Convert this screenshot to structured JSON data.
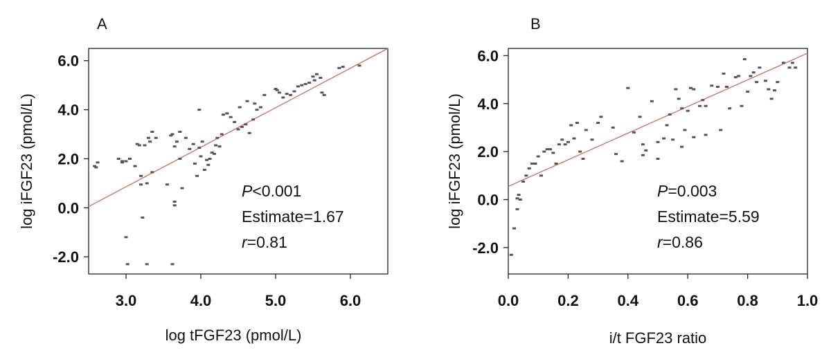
{
  "chart_data": [
    {
      "panel": "A",
      "type": "scatter",
      "xlabel": "log tFGF23 (pmol/L)",
      "ylabel": "log iFGF23 (pmol/L)",
      "xlim": [
        2.5,
        6.5
      ],
      "ylim": [
        -2.7,
        6.5
      ],
      "xticks": [
        "3.0",
        "4.0",
        "5.0",
        "6.0"
      ],
      "yticks": [
        "-2.0",
        "0.0",
        "2.0",
        "4.0",
        "6.0"
      ],
      "grid": false,
      "stats": [
        {
          "italic": "P",
          "rest": "<0.001"
        },
        {
          "italic": "",
          "rest": "Estimate=1.67"
        },
        {
          "italic": "r",
          "rest": "=0.81"
        }
      ],
      "fit_line": {
        "x": [
          2.5,
          6.5
        ],
        "y": [
          0.05,
          6.55
        ]
      },
      "x": [
        2.58,
        2.6,
        2.62,
        2.9,
        2.95,
        3.0,
        3.02,
        3.05,
        3.12,
        3.15,
        3.18,
        3.2,
        3.22,
        3.25,
        3.28,
        3.3,
        3.32,
        3.35,
        3.4,
        3.55,
        3.6,
        3.62,
        3.65,
        3.68,
        3.72,
        3.75,
        3.8,
        3.85,
        3.9,
        3.92,
        3.95,
        3.98,
        4.0,
        4.02,
        4.05,
        4.08,
        4.1,
        4.12,
        4.15,
        4.18,
        4.2,
        4.22,
        4.25,
        4.28,
        4.3,
        4.35,
        4.4,
        4.45,
        4.5,
        4.52,
        4.55,
        4.6,
        4.62,
        4.65,
        4.7,
        4.72,
        4.75,
        4.8,
        4.85,
        5.0,
        5.02,
        5.05,
        5.1,
        5.15,
        5.2,
        5.25,
        5.3,
        5.35,
        5.4,
        5.45,
        5.5,
        5.52,
        5.55,
        5.6,
        5.62,
        5.65,
        5.85,
        5.9,
        6.12,
        3.0,
        3.05,
        3.2,
        3.28,
        3.65,
        3.65,
        3.62,
        3.72,
        3.98,
        3.35,
        2.95
      ],
      "y": [
        1.7,
        1.65,
        1.85,
        2.0,
        1.85,
        -1.2,
        -2.3,
        2.0,
        1.7,
        2.6,
        2.55,
        0.95,
        -0.4,
        2.55,
        -2.3,
        2.85,
        2.7,
        1.45,
        2.85,
        0.95,
        2.95,
        3.0,
        2.5,
        2.7,
        3.1,
        0.8,
        2.85,
        2.4,
        2.6,
        1.8,
        1.3,
        2.45,
        2.1,
        2.7,
        1.55,
        1.95,
        1.75,
        2.0,
        2.25,
        2.2,
        2.55,
        2.85,
        2.5,
        3.0,
        3.8,
        3.85,
        3.7,
        3.5,
        3.2,
        4.1,
        3.3,
        3.4,
        4.35,
        3.05,
        3.6,
        4.25,
        4.0,
        4.1,
        4.6,
        4.85,
        4.8,
        4.7,
        4.5,
        4.65,
        4.6,
        4.75,
        4.95,
        5.0,
        5.05,
        5.1,
        5.35,
        5.2,
        5.45,
        5.3,
        4.7,
        4.6,
        5.7,
        5.75,
        5.8,
        1.9,
        2.0,
        1.3,
        1.0,
        0.1,
        0.25,
        -2.3,
        2.0,
        4.0,
        3.1,
        1.9
      ]
    },
    {
      "panel": "B",
      "type": "scatter",
      "xlabel": "i/t FGF23 ratio",
      "ylabel": "log iFGF23 (pmol/L)",
      "xlim": [
        0.0,
        1.0
      ],
      "ylim": [
        -3.1,
        6.3
      ],
      "xticks": [
        "0.0",
        "0.2",
        "0.4",
        "0.6",
        "0.8",
        "1.0"
      ],
      "yticks": [
        "-2.0",
        "0.0",
        "2.0",
        "4.0",
        "6.0"
      ],
      "grid": false,
      "stats": [
        {
          "italic": "P",
          "rest": "=0.003"
        },
        {
          "italic": "",
          "rest": "Estimate=5.59"
        },
        {
          "italic": "r",
          "rest": "=0.86"
        }
      ],
      "fit_line": {
        "x": [
          0.0,
          1.0
        ],
        "y": [
          0.55,
          6.1
        ]
      },
      "x": [
        0.01,
        0.02,
        0.03,
        0.03,
        0.035,
        0.04,
        0.05,
        0.06,
        0.07,
        0.08,
        0.09,
        0.1,
        0.11,
        0.12,
        0.13,
        0.14,
        0.15,
        0.16,
        0.17,
        0.18,
        0.19,
        0.2,
        0.21,
        0.22,
        0.23,
        0.24,
        0.25,
        0.26,
        0.28,
        0.3,
        0.31,
        0.35,
        0.36,
        0.38,
        0.4,
        0.42,
        0.44,
        0.45,
        0.46,
        0.48,
        0.5,
        0.52,
        0.53,
        0.54,
        0.55,
        0.56,
        0.57,
        0.58,
        0.59,
        0.6,
        0.61,
        0.62,
        0.64,
        0.65,
        0.66,
        0.68,
        0.7,
        0.71,
        0.72,
        0.73,
        0.74,
        0.76,
        0.77,
        0.78,
        0.79,
        0.8,
        0.81,
        0.82,
        0.83,
        0.84,
        0.86,
        0.87,
        0.88,
        0.89,
        0.9,
        0.92,
        0.94,
        0.95,
        0.96,
        0.58,
        0.62,
        0.66,
        0.5,
        0.45
      ],
      "y": [
        -2.3,
        -1.2,
        -0.4,
        0.05,
        0.2,
        0.0,
        0.75,
        1.0,
        1.3,
        1.5,
        1.5,
        1.8,
        1.0,
        2.0,
        2.1,
        2.1,
        1.95,
        1.5,
        2.3,
        2.5,
        2.3,
        2.4,
        3.1,
        2.55,
        3.2,
        2.0,
        1.7,
        2.9,
        2.5,
        3.2,
        3.45,
        3.0,
        1.9,
        1.6,
        4.65,
        2.8,
        3.45,
        1.85,
        2.05,
        4.1,
        1.7,
        2.55,
        3.1,
        3.55,
        2.5,
        4.6,
        4.2,
        3.8,
        2.9,
        3.7,
        4.65,
        4.6,
        3.9,
        4.15,
        2.7,
        4.75,
        4.7,
        2.9,
        5.25,
        4.7,
        3.8,
        5.1,
        5.15,
        3.9,
        5.85,
        4.5,
        5.15,
        5.3,
        4.9,
        5.5,
        4.95,
        4.6,
        4.2,
        4.55,
        4.9,
        5.7,
        5.5,
        5.7,
        5.5,
        2.2,
        2.6,
        3.9,
        2.4,
        2.3
      ]
    }
  ]
}
